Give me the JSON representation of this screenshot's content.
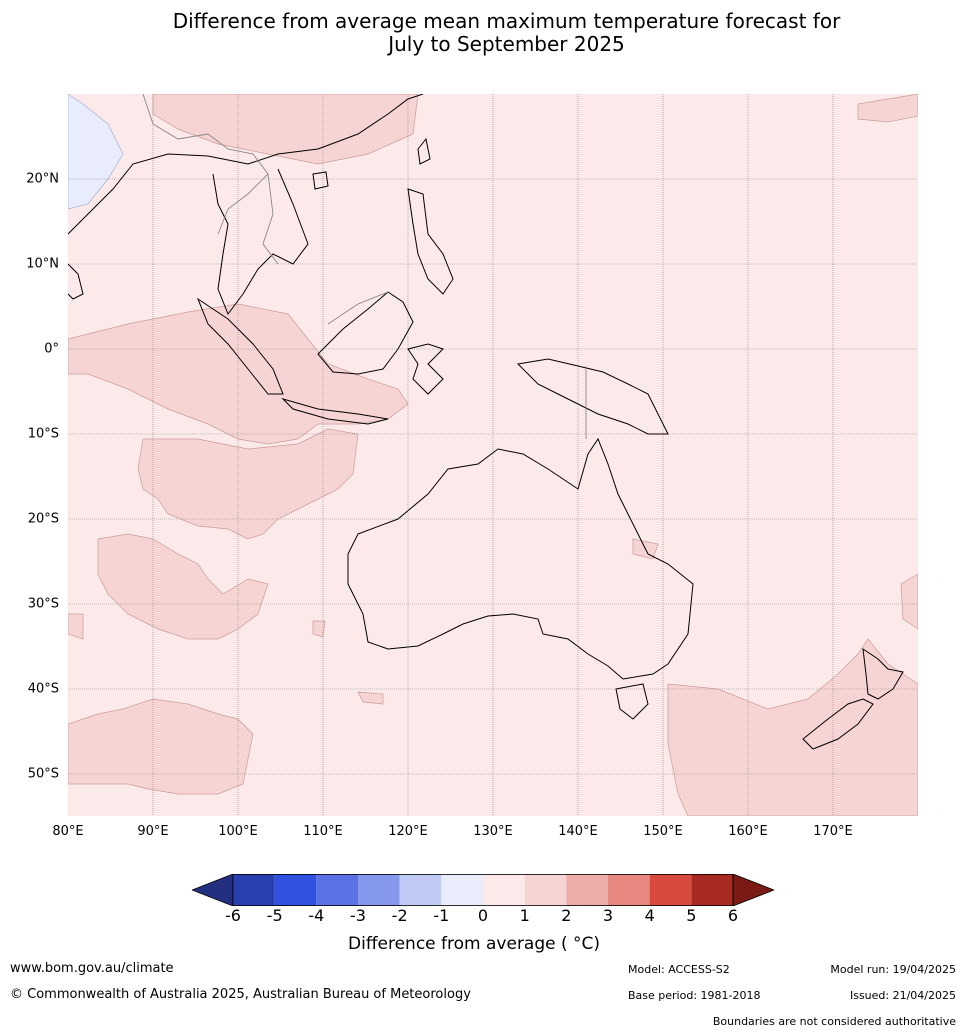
{
  "title": {
    "line1": "Difference from average mean maximum temperature forecast for",
    "line2": "July to September 2025"
  },
  "map": {
    "lat_labels": [
      {
        "label": "20°N"
      },
      {
        "label": "10°N"
      },
      {
        "label": "0°"
      },
      {
        "label": "10°S"
      },
      {
        "label": "20°S"
      },
      {
        "label": "30°S"
      },
      {
        "label": "40°S"
      },
      {
        "label": "50°S"
      }
    ],
    "lon_labels": [
      {
        "label": "80°E"
      },
      {
        "label": "90°E"
      },
      {
        "label": "100°E"
      },
      {
        "label": "110°E"
      },
      {
        "label": "120°E"
      },
      {
        "label": "130°E"
      },
      {
        "label": "140°E"
      },
      {
        "label": "150°E"
      },
      {
        "label": "160°E"
      },
      {
        "label": "170°E"
      }
    ],
    "lat_range": [
      -55,
      30
    ],
    "lon_range": [
      80,
      180
    ],
    "colors": {
      "class_0_1": "#fbeae9",
      "class_1_2": "#f5d4d3",
      "class_-1_0": "#e9ecfb",
      "land_outline": "#000000",
      "border": "#888888"
    }
  },
  "colorbar": {
    "ticks": [
      "-6",
      "-5",
      "-4",
      "-3",
      "-2",
      "-1",
      "0",
      "1",
      "2",
      "3",
      "4",
      "5",
      "6"
    ],
    "colors": [
      "#232f7f",
      "#2840b0",
      "#3151e1",
      "#5a72e4",
      "#8698ec",
      "#c1c9f5",
      "#e9ecfb",
      "#fbeae9",
      "#f5d4d3",
      "#ecaca8",
      "#e68880",
      "#d94a3e",
      "#a82a22",
      "#7a1a14"
    ],
    "label": "Difference from average ( °C)"
  },
  "footer": {
    "website": "www.bom.gov.au/climate",
    "copyright": "© Commonwealth of Australia 2025, Australian Bureau of Meteorology",
    "model": "Model: ACCESS-S2",
    "model_run": "Model run: 19/04/2025",
    "base_period": "Base period: 1981-2018",
    "issued": "Issued: 21/04/2025",
    "disclaimer": "Boundaries are not considered authoritative"
  }
}
